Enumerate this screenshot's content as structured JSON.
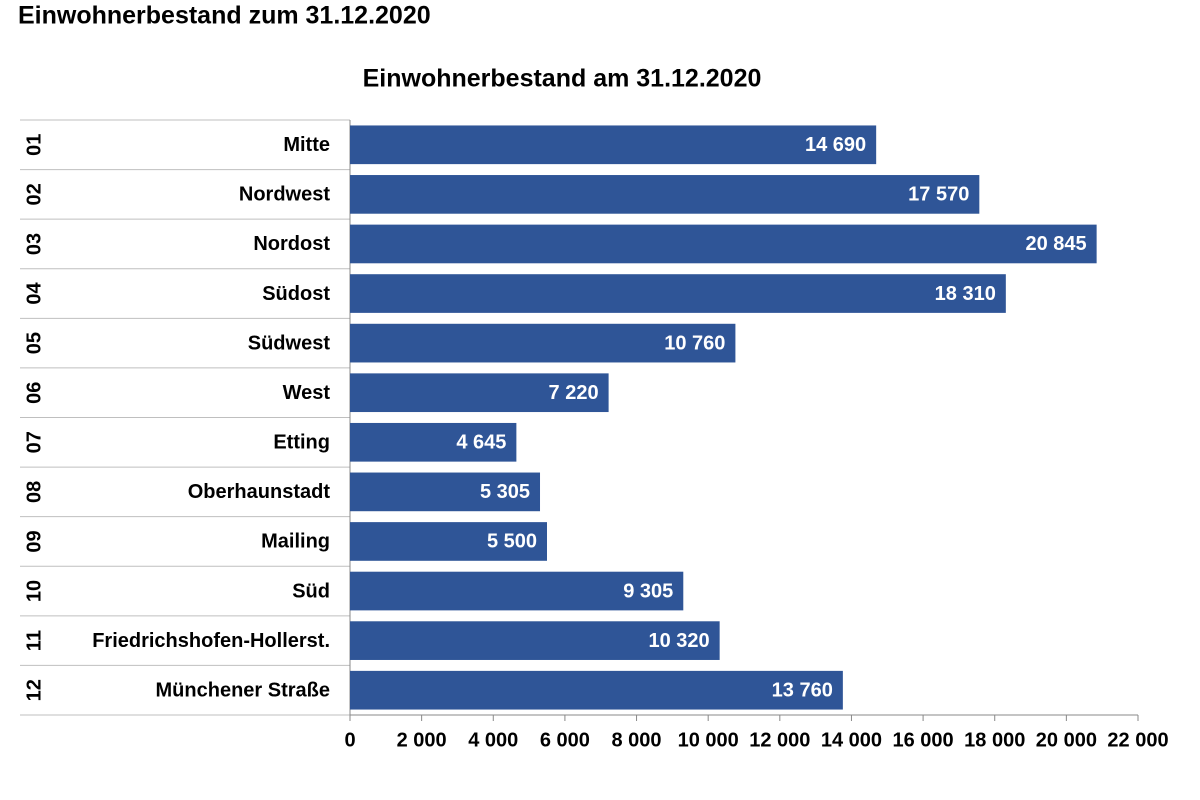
{
  "header": {
    "title": "Einwohnerbestand zum 31.12.2020"
  },
  "chart_data": {
    "type": "bar",
    "orientation": "horizontal",
    "title": "Einwohnerbestand am 31.12.2020",
    "category_codes": [
      "01",
      "02",
      "03",
      "04",
      "05",
      "06",
      "07",
      "08",
      "09",
      "10",
      "11",
      "12"
    ],
    "categories": [
      "Mitte",
      "Nordwest",
      "Nordost",
      "Südost",
      "Südwest",
      "West",
      "Etting",
      "Oberhaunstadt",
      "Mailing",
      "Süd",
      "Friedrichshofen-Hollerst.",
      "Münchener Straße"
    ],
    "values": [
      14690,
      17570,
      20845,
      18310,
      10760,
      7220,
      4645,
      5305,
      5500,
      9305,
      10320,
      13760
    ],
    "value_labels": [
      "14 690",
      "17 570",
      "20 845",
      "18 310",
      "10 760",
      "7 220",
      "4 645",
      "5 305",
      "5 500",
      "9 305",
      "10 320",
      "13 760"
    ],
    "color": "#2f5597",
    "xlim": [
      0,
      22000
    ],
    "xticks": [
      0,
      {
        "value": 2000,
        "label": "2 000"
      },
      {
        "value": 4000,
        "label": "4 000"
      },
      {
        "value": 6000,
        "label": "6 000"
      },
      {
        "value": 8000,
        "label": "8 000"
      },
      {
        "value": 10000,
        "label": "10 000"
      },
      {
        "value": 12000,
        "label": "12 000"
      },
      {
        "value": 14000,
        "label": "14 000"
      },
      {
        "value": 16000,
        "label": "16 000"
      },
      {
        "value": 18000,
        "label": "18 000"
      },
      {
        "value": 20000,
        "label": "20 000"
      },
      {
        "value": 22000,
        "label": "22 000"
      }
    ]
  }
}
